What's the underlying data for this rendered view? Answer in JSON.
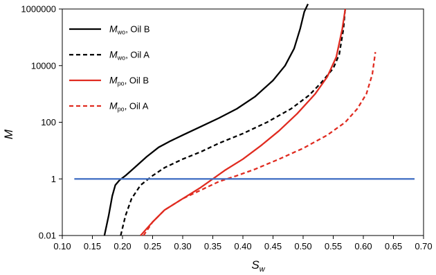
{
  "chart_data": {
    "type": "line",
    "xlabel": "S",
    "xlabel_sub": "w",
    "ylabel": "M",
    "xlim": [
      0.1,
      0.7
    ],
    "ylim": [
      0.01,
      1000000
    ],
    "y_scale": "log",
    "grid": false,
    "legend_placement": "top-left",
    "x_ticks": [
      "0.10",
      "0.15",
      "0.20",
      "0.25",
      "0.30",
      "0.35",
      "0.40",
      "0.45",
      "0.50",
      "0.55",
      "0.60",
      "0.65",
      "0.70"
    ],
    "y_ticks": [
      "0.01",
      "1",
      "100",
      "10000",
      "1000000"
    ],
    "series": [
      {
        "name": "M",
        "name_sub": "wo",
        "name_rest": ", Oil B",
        "color": "#000000",
        "dash": "solid",
        "points": [
          [
            0.17,
            0.01
          ],
          [
            0.177,
            0.05
          ],
          [
            0.183,
            0.25
          ],
          [
            0.188,
            0.6
          ],
          [
            0.195,
            0.9
          ],
          [
            0.205,
            1.3
          ],
          [
            0.22,
            2.5
          ],
          [
            0.24,
            6
          ],
          [
            0.26,
            13
          ],
          [
            0.28,
            22
          ],
          [
            0.3,
            35
          ],
          [
            0.33,
            70
          ],
          [
            0.36,
            140
          ],
          [
            0.39,
            300
          ],
          [
            0.42,
            800
          ],
          [
            0.45,
            3000
          ],
          [
            0.47,
            10000
          ],
          [
            0.485,
            40000
          ],
          [
            0.495,
            200000
          ],
          [
            0.502,
            800000
          ],
          [
            0.508,
            1500000
          ]
        ]
      },
      {
        "name": "M",
        "name_sub": "wo",
        "name_rest": ", Oil A",
        "color": "#000000",
        "dash": "dashed",
        "points": [
          [
            0.197,
            0.01
          ],
          [
            0.205,
            0.05
          ],
          [
            0.215,
            0.2
          ],
          [
            0.23,
            0.6
          ],
          [
            0.25,
            1.3
          ],
          [
            0.27,
            2.5
          ],
          [
            0.3,
            5
          ],
          [
            0.33,
            9
          ],
          [
            0.36,
            18
          ],
          [
            0.4,
            40
          ],
          [
            0.44,
            100
          ],
          [
            0.48,
            300
          ],
          [
            0.51,
            900
          ],
          [
            0.53,
            2500
          ],
          [
            0.55,
            8000
          ],
          [
            0.56,
            25000
          ],
          [
            0.567,
            200000
          ],
          [
            0.57,
            1100000
          ]
        ]
      },
      {
        "name": "M",
        "name_sub": "po",
        "name_rest": ", Oil B",
        "color": "#e02b20",
        "dash": "solid",
        "points": [
          [
            0.23,
            0.01
          ],
          [
            0.25,
            0.03
          ],
          [
            0.27,
            0.08
          ],
          [
            0.3,
            0.2
          ],
          [
            0.33,
            0.5
          ],
          [
            0.35,
            1.0
          ],
          [
            0.37,
            2.0
          ],
          [
            0.4,
            5
          ],
          [
            0.43,
            15
          ],
          [
            0.46,
            50
          ],
          [
            0.49,
            200
          ],
          [
            0.52,
            1000
          ],
          [
            0.54,
            4000
          ],
          [
            0.555,
            20000
          ],
          [
            0.565,
            200000
          ],
          [
            0.57,
            1000000
          ]
        ]
      },
      {
        "name": "M",
        "name_sub": "po",
        "name_rest": ", Oil A",
        "color": "#e02b20",
        "dash": "dashed",
        "points": [
          [
            0.235,
            0.01
          ],
          [
            0.25,
            0.03
          ],
          [
            0.27,
            0.08
          ],
          [
            0.3,
            0.2
          ],
          [
            0.33,
            0.4
          ],
          [
            0.36,
            0.8
          ],
          [
            0.39,
            1.3
          ],
          [
            0.42,
            2.2
          ],
          [
            0.46,
            5
          ],
          [
            0.5,
            12
          ],
          [
            0.54,
            35
          ],
          [
            0.57,
            100
          ],
          [
            0.59,
            300
          ],
          [
            0.605,
            1000
          ],
          [
            0.615,
            5000
          ],
          [
            0.62,
            30000
          ]
        ]
      },
      {
        "name": "",
        "color": "#4472c4",
        "dash": "solid",
        "points": [
          [
            0.12,
            1
          ],
          [
            0.685,
            1
          ]
        ]
      }
    ]
  }
}
